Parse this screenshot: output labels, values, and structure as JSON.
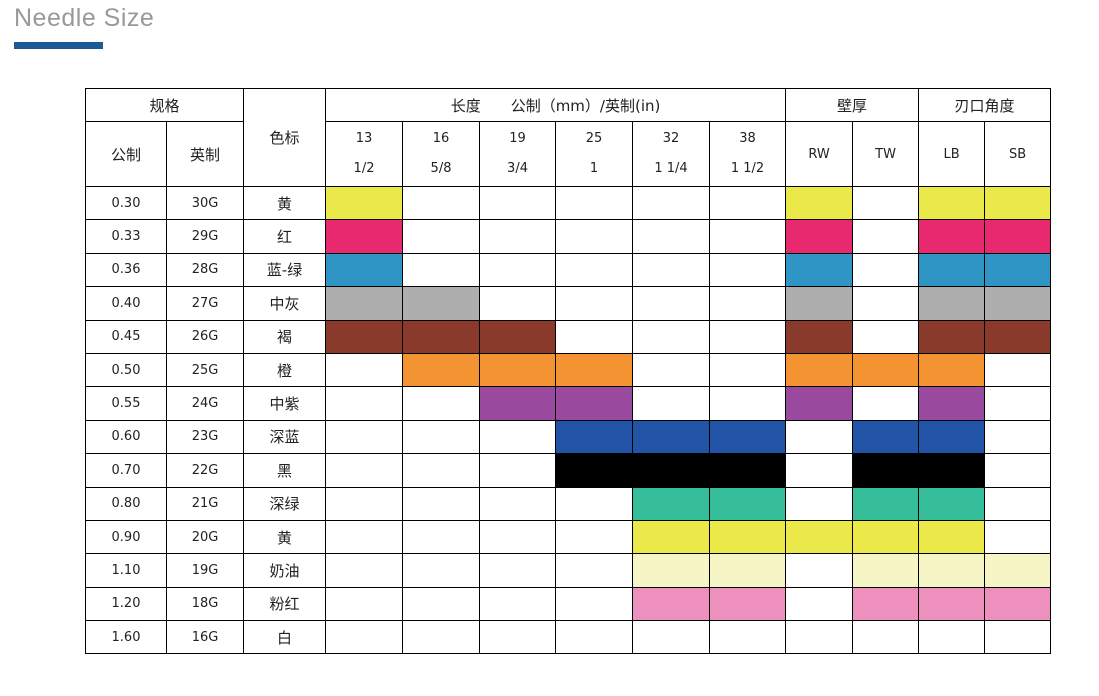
{
  "title": "Needle Size",
  "accent": "#1e5a93",
  "header": {
    "spec": "规格",
    "metric": "公制",
    "imperial": "英制",
    "color_label": "色标",
    "length": "长度　　公制（mm）/英制(in)",
    "wall": "壁厚",
    "bevel": "刃口角度",
    "lengths": [
      {
        "mm": "13",
        "in": "1/2"
      },
      {
        "mm": "16",
        "in": "5/8"
      },
      {
        "mm": "19",
        "in": "3/4"
      },
      {
        "mm": "25",
        "in": "1"
      },
      {
        "mm": "32",
        "in": "1 1/4"
      },
      {
        "mm": "38",
        "in": "1 1/2"
      }
    ],
    "walls": [
      "RW",
      "TW"
    ],
    "bevels": [
      "LB",
      "SB"
    ]
  },
  "rows": [
    {
      "metric": "0.30",
      "gauge": "30G",
      "color": "黄",
      "hex": "#ebe94a",
      "fill": [
        1,
        0,
        0,
        0,
        0,
        0,
        1,
        0,
        1,
        1
      ]
    },
    {
      "metric": "0.33",
      "gauge": "29G",
      "color": "红",
      "hex": "#e8286f",
      "fill": [
        1,
        0,
        0,
        0,
        0,
        0,
        1,
        0,
        1,
        1
      ]
    },
    {
      "metric": "0.36",
      "gauge": "28G",
      "color": "蓝-绿",
      "hex": "#2e95c5",
      "fill": [
        1,
        0,
        0,
        0,
        0,
        0,
        1,
        0,
        1,
        1
      ]
    },
    {
      "metric": "0.40",
      "gauge": "27G",
      "color": "中灰",
      "hex": "#aeaeae",
      "fill": [
        1,
        1,
        0,
        0,
        0,
        0,
        1,
        0,
        1,
        1
      ]
    },
    {
      "metric": "0.45",
      "gauge": "26G",
      "color": "褐",
      "hex": "#8a3a2a",
      "fill": [
        1,
        1,
        1,
        0,
        0,
        0,
        1,
        0,
        1,
        1
      ]
    },
    {
      "metric": "0.50",
      "gauge": "25G",
      "color": "橙",
      "hex": "#f39332",
      "fill": [
        0,
        1,
        1,
        1,
        0,
        0,
        1,
        1,
        1,
        0
      ]
    },
    {
      "metric": "0.55",
      "gauge": "24G",
      "color": "中紫",
      "hex": "#9a4a9e",
      "fill": [
        0,
        0,
        1,
        1,
        0,
        0,
        1,
        0,
        1,
        0
      ]
    },
    {
      "metric": "0.60",
      "gauge": "23G",
      "color": "深蓝",
      "hex": "#2154a6",
      "fill": [
        0,
        0,
        0,
        1,
        1,
        1,
        0,
        1,
        1,
        0
      ]
    },
    {
      "metric": "0.70",
      "gauge": "22G",
      "color": "黑",
      "hex": "#000000",
      "fill": [
        0,
        0,
        0,
        1,
        1,
        1,
        0,
        1,
        1,
        0
      ]
    },
    {
      "metric": "0.80",
      "gauge": "21G",
      "color": "深绿",
      "hex": "#34bd98",
      "fill": [
        0,
        0,
        0,
        0,
        1,
        1,
        0,
        1,
        1,
        0
      ]
    },
    {
      "metric": "0.90",
      "gauge": "20G",
      "color": "黄",
      "hex": "#ebe94a",
      "fill": [
        0,
        0,
        0,
        0,
        1,
        1,
        1,
        1,
        1,
        0
      ]
    },
    {
      "metric": "1.10",
      "gauge": "19G",
      "color": "奶油",
      "hex": "#f5f5c6",
      "fill": [
        0,
        0,
        0,
        0,
        1,
        1,
        0,
        1,
        1,
        1
      ]
    },
    {
      "metric": "1.20",
      "gauge": "18G",
      "color": "粉红",
      "hex": "#ee90bd",
      "fill": [
        0,
        0,
        0,
        0,
        1,
        1,
        0,
        1,
        1,
        1
      ]
    },
    {
      "metric": "1.60",
      "gauge": "16G",
      "color": "白",
      "hex": "#ffffff",
      "fill": [
        0,
        0,
        0,
        0,
        0,
        0,
        0,
        0,
        0,
        0
      ]
    }
  ]
}
